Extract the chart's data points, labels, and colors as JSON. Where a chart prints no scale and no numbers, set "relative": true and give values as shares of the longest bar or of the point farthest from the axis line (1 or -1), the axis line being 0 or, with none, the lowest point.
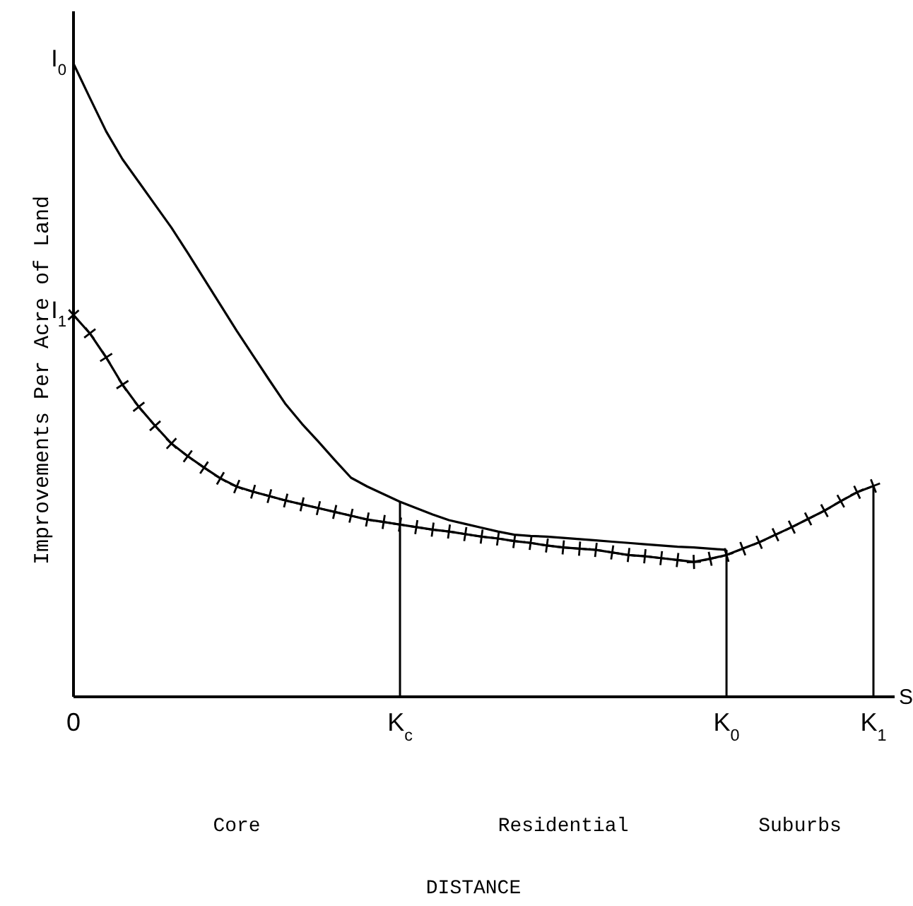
{
  "chart_data": {
    "type": "line",
    "relative": true,
    "ylabel": "Improvements Per Acre of Land",
    "categories": [
      "0",
      null,
      null,
      null,
      null,
      null,
      null,
      null,
      null,
      null,
      null,
      null,
      null,
      null,
      null,
      null,
      null,
      null,
      null,
      null,
      "K$_{c}$",
      null,
      null,
      null,
      null,
      null,
      null,
      null,
      null,
      null,
      null,
      null,
      null,
      null,
      null,
      null,
      null,
      null,
      null,
      null,
      "K$_{0}$",
      null,
      null,
      null,
      null,
      null,
      null,
      null,
      null,
      "K$_{1}$"
    ],
    "annotations": [
      "S",
      "DISTANCE",
      "Core",
      "Residential",
      "Suburbs",
      {
        "text": "I$_{0}$",
        "x": "0",
        "y": 1
      },
      {
        "text": "I$_{1}$",
        "x": "0",
        "y": 0.603
      }
    ],
    "ref_lines": [
      {
        "axis": "x",
        "value": "K$_{c}$",
        "color": "#000000"
      },
      {
        "axis": "x",
        "value": "K$_{0}$",
        "color": "#000000"
      },
      {
        "axis": "x",
        "value": "K$_{1}$",
        "color": "#000000"
      }
    ],
    "series": [
      {
        "color": "#000000",
        "marker": "none",
        "values": [
          1,
          0.946,
          0.893,
          0.849,
          0.813,
          0.777,
          0.741,
          0.701,
          0.66,
          0.619,
          0.578,
          0.539,
          0.5,
          0.462,
          0.431,
          0.403,
          0.374,
          0.346,
          0.332,
          0.32,
          0.308,
          0.298,
          0.288,
          0.279,
          0.273,
          0.267,
          0.261,
          0.256,
          0.254,
          0.253,
          0.251,
          0.249,
          0.247,
          0.245,
          0.243,
          0.241,
          0.239,
          0.237,
          0.236,
          0.234,
          0.232,
          null,
          null,
          null,
          null,
          null,
          null,
          null,
          null,
          null
        ]
      },
      {
        "color": "#000000",
        "marker": "cross",
        "values": [
          0.603,
          0.574,
          0.536,
          0.493,
          0.458,
          0.428,
          0.4,
          0.38,
          0.362,
          0.345,
          0.332,
          0.324,
          0.317,
          0.31,
          0.304,
          0.298,
          0.292,
          0.286,
          0.28,
          0.276,
          0.272,
          0.268,
          0.264,
          0.261,
          0.257,
          0.253,
          0.25,
          0.246,
          0.243,
          0.239,
          0.236,
          0.234,
          0.232,
          0.228,
          0.224,
          0.222,
          0.219,
          0.216,
          0.213,
          0.218,
          0.224,
          0.234,
          0.244,
          0.256,
          0.268,
          0.281,
          0.294,
          0.309,
          0.323,
          0.333
        ]
      }
    ]
  }
}
